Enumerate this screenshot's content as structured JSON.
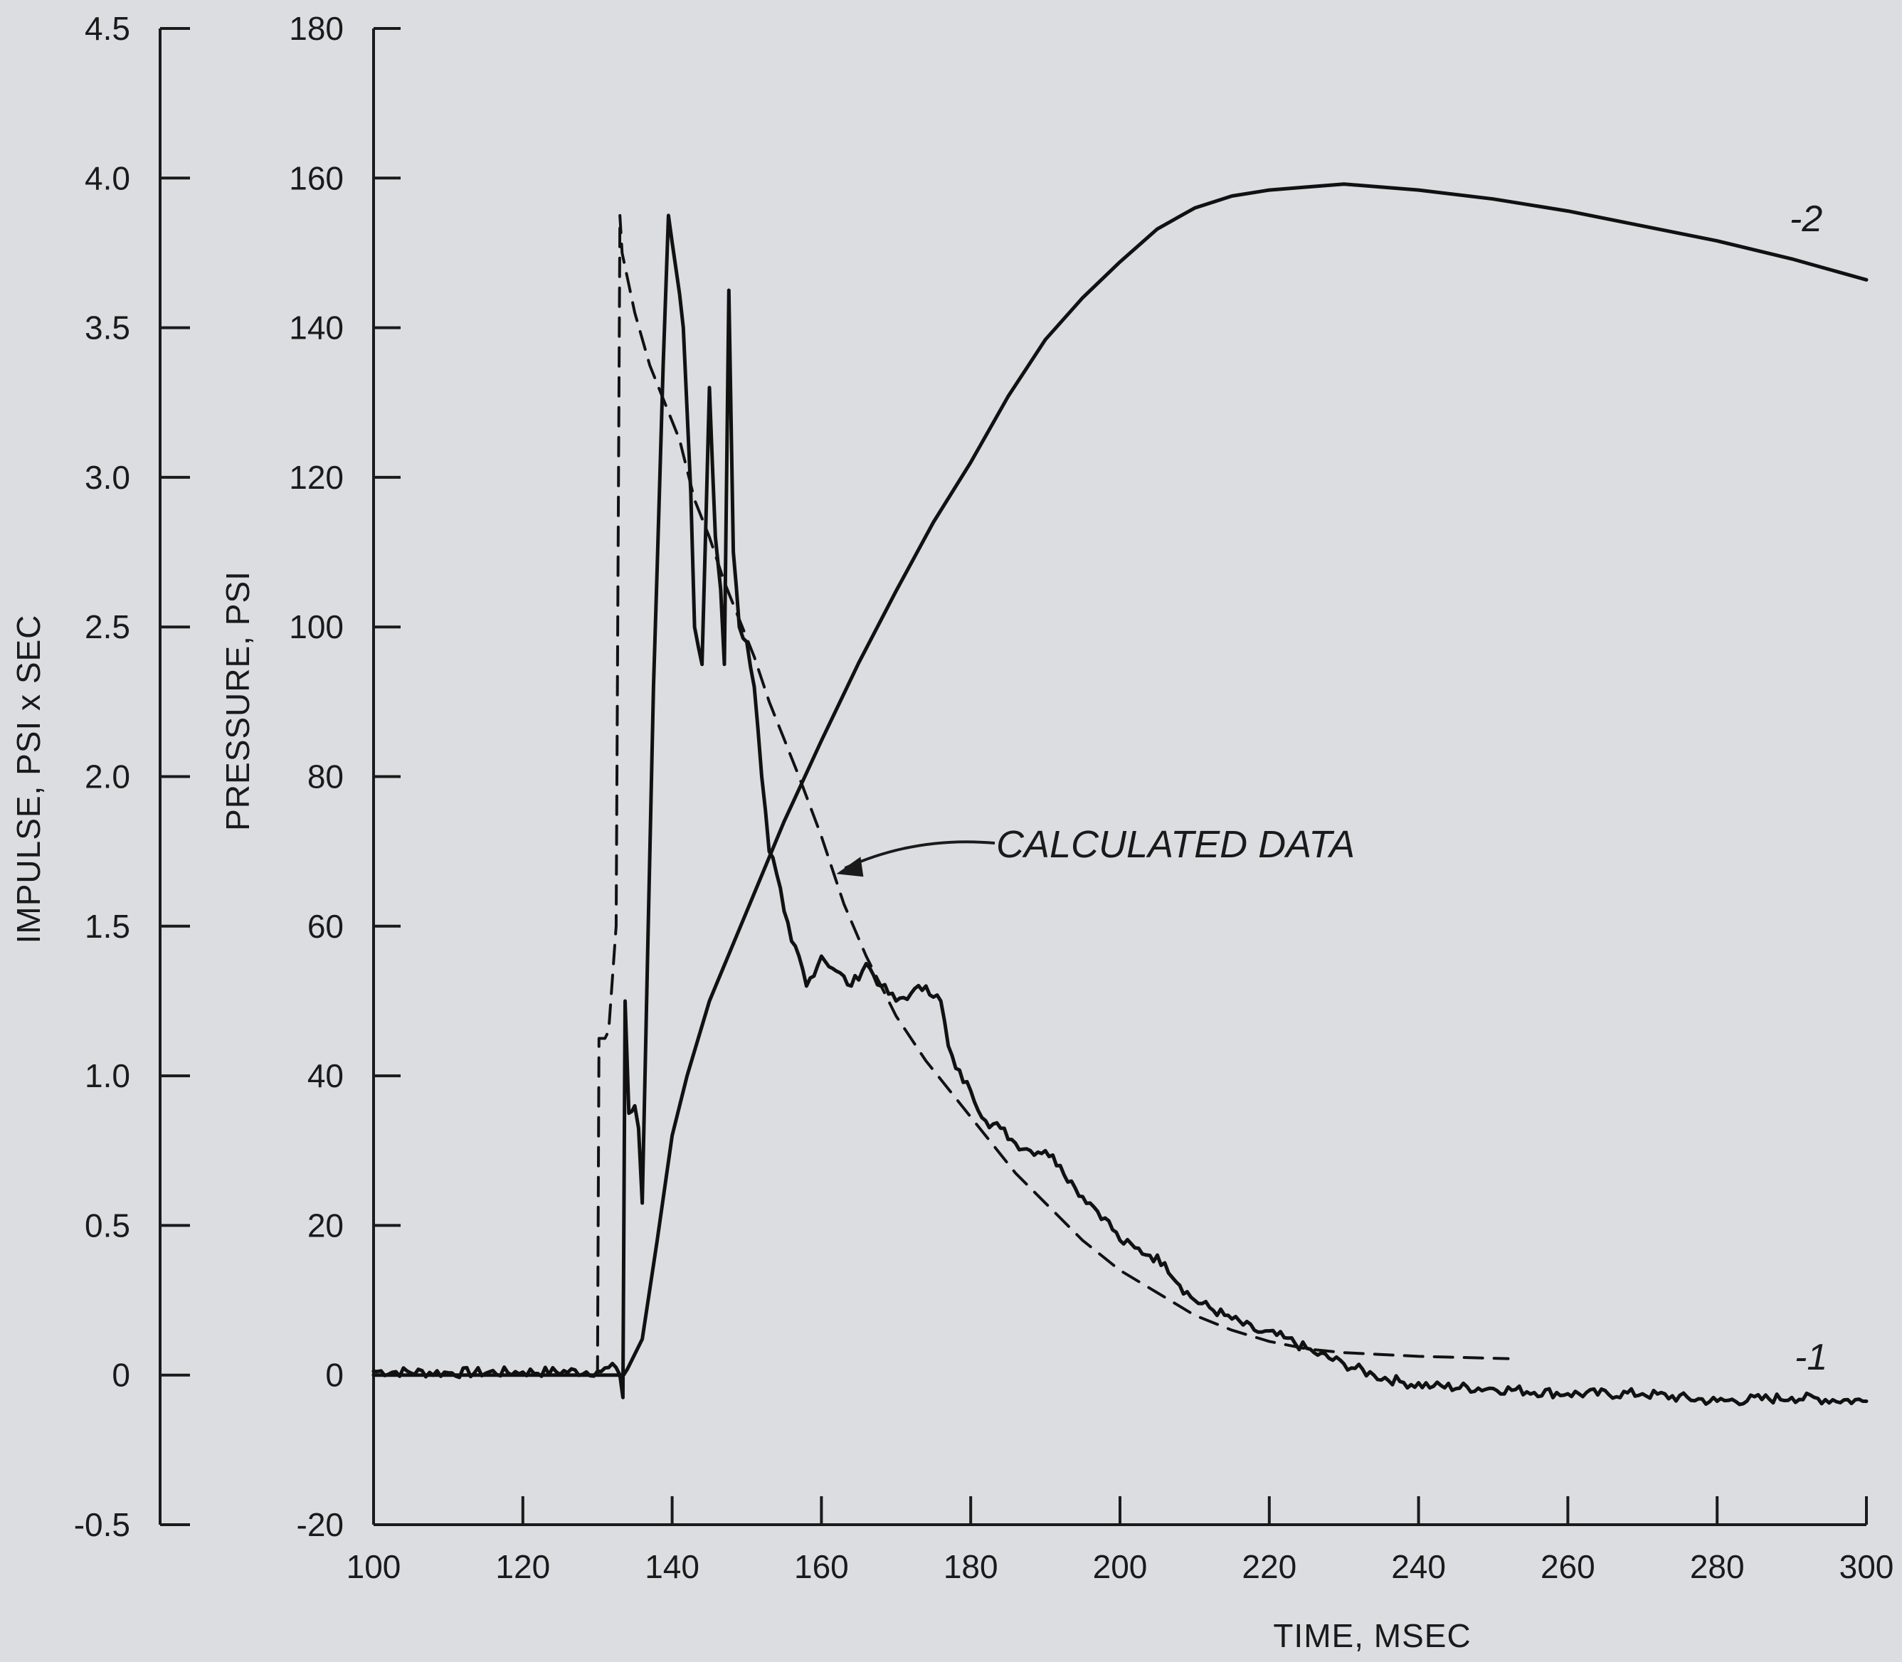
{
  "chart_data": {
    "type": "line",
    "title": "",
    "xlabel": "TIME, MSEC",
    "y_left_outer_label": "IMPULSE, PSI x SEC",
    "y_left_inner_label": "PRESSURE, PSI",
    "xlim": [
      100,
      300
    ],
    "xticks": [
      100,
      120,
      140,
      160,
      180,
      200,
      220,
      240,
      260,
      280,
      300
    ],
    "pressure_axis": {
      "ylim": [
        -20,
        180
      ],
      "ticks": [
        -20,
        0,
        20,
        40,
        60,
        80,
        100,
        120,
        140,
        160,
        180
      ]
    },
    "impulse_axis": {
      "ylim": [
        -0.5,
        4.5
      ],
      "ticks": [
        "-0.5",
        "0",
        "0.5",
        "1.0",
        "1.5",
        "2.0",
        "2.5",
        "3.0",
        "3.5",
        "4.0",
        "4.5"
      ]
    },
    "grid": false,
    "series": [
      {
        "name": "-1",
        "axis": "pressure",
        "style": "solid-noisy",
        "points": [
          [
            100,
            0.5
          ],
          [
            110,
            0.3
          ],
          [
            120,
            0.4
          ],
          [
            130,
            0.5
          ],
          [
            132.5,
            1
          ],
          [
            133,
            0
          ],
          [
            133.4,
            -3
          ],
          [
            133.7,
            50
          ],
          [
            134.2,
            35
          ],
          [
            135,
            36
          ],
          [
            135.5,
            33
          ],
          [
            136,
            23
          ],
          [
            136.8,
            60
          ],
          [
            137.5,
            92
          ],
          [
            138,
            108
          ],
          [
            138.8,
            135
          ],
          [
            139.5,
            155
          ],
          [
            140.5,
            148
          ],
          [
            141.5,
            140
          ],
          [
            142.5,
            118
          ],
          [
            143,
            100
          ],
          [
            144,
            95
          ],
          [
            145,
            132
          ],
          [
            145.8,
            112
          ],
          [
            146.5,
            105
          ],
          [
            147,
            95
          ],
          [
            147.6,
            145
          ],
          [
            148.2,
            110
          ],
          [
            149,
            100
          ],
          [
            150,
            98
          ],
          [
            151,
            92
          ],
          [
            152,
            80
          ],
          [
            153,
            70
          ],
          [
            154,
            67
          ],
          [
            155,
            62
          ],
          [
            156,
            58
          ],
          [
            157,
            56
          ],
          [
            158,
            52
          ],
          [
            160,
            56
          ],
          [
            162,
            54
          ],
          [
            164,
            52
          ],
          [
            166,
            55
          ],
          [
            168,
            52
          ],
          [
            170,
            50
          ],
          [
            172,
            51
          ],
          [
            174,
            52
          ],
          [
            176,
            50
          ],
          [
            177,
            44
          ],
          [
            178,
            41
          ],
          [
            180,
            38
          ],
          [
            182,
            34
          ],
          [
            184,
            33
          ],
          [
            186,
            31
          ],
          [
            188,
            30
          ],
          [
            190,
            30
          ],
          [
            192,
            28
          ],
          [
            194,
            25
          ],
          [
            196,
            23
          ],
          [
            198,
            21
          ],
          [
            200,
            18
          ],
          [
            202,
            17
          ],
          [
            204,
            16
          ],
          [
            206,
            15
          ],
          [
            208,
            12
          ],
          [
            210,
            10
          ],
          [
            214,
            8
          ],
          [
            218,
            6
          ],
          [
            222,
            5
          ],
          [
            226,
            3
          ],
          [
            230,
            1.5
          ],
          [
            234,
            0
          ],
          [
            238,
            -1
          ],
          [
            242,
            -1.5
          ],
          [
            250,
            -1.8
          ],
          [
            260,
            -2.5
          ],
          [
            270,
            -2.5
          ],
          [
            280,
            -3.5
          ],
          [
            290,
            -3
          ],
          [
            300,
            -3.5
          ]
        ]
      },
      {
        "name": "-2",
        "axis": "impulse",
        "style": "solid",
        "points": [
          [
            100,
            0
          ],
          [
            130,
            0
          ],
          [
            133.5,
            0
          ],
          [
            134,
            0.02
          ],
          [
            136,
            0.12
          ],
          [
            138,
            0.45
          ],
          [
            140,
            0.8
          ],
          [
            142,
            1.0
          ],
          [
            145,
            1.25
          ],
          [
            150,
            1.55
          ],
          [
            155,
            1.85
          ],
          [
            160,
            2.12
          ],
          [
            165,
            2.38
          ],
          [
            170,
            2.62
          ],
          [
            175,
            2.85
          ],
          [
            180,
            3.05
          ],
          [
            185,
            3.27
          ],
          [
            190,
            3.46
          ],
          [
            195,
            3.6
          ],
          [
            200,
            3.72
          ],
          [
            205,
            3.83
          ],
          [
            210,
            3.9
          ],
          [
            215,
            3.94
          ],
          [
            220,
            3.96
          ],
          [
            225,
            3.97
          ],
          [
            230,
            3.98
          ],
          [
            240,
            3.96
          ],
          [
            250,
            3.93
          ],
          [
            260,
            3.89
          ],
          [
            270,
            3.84
          ],
          [
            280,
            3.79
          ],
          [
            290,
            3.73
          ],
          [
            300,
            3.66
          ]
        ]
      },
      {
        "name": "CALCULATED DATA",
        "axis": "pressure",
        "style": "dashed",
        "points": [
          [
            130,
            0
          ],
          [
            130.2,
            45
          ],
          [
            131,
            45
          ],
          [
            131.5,
            46
          ],
          [
            132.5,
            60
          ],
          [
            133,
            155
          ],
          [
            133.3,
            150
          ],
          [
            135,
            142
          ],
          [
            137,
            135
          ],
          [
            139,
            130
          ],
          [
            141,
            125
          ],
          [
            143,
            117
          ],
          [
            145,
            112
          ],
          [
            147,
            106
          ],
          [
            149,
            101
          ],
          [
            151,
            96
          ],
          [
            153,
            90
          ],
          [
            155,
            85
          ],
          [
            157,
            80
          ],
          [
            160,
            72
          ],
          [
            163,
            63
          ],
          [
            166,
            56
          ],
          [
            170,
            48
          ],
          [
            174,
            42
          ],
          [
            178,
            37
          ],
          [
            182,
            32
          ],
          [
            186,
            27
          ],
          [
            190,
            23
          ],
          [
            195,
            18
          ],
          [
            200,
            14
          ],
          [
            205,
            11
          ],
          [
            210,
            8
          ],
          [
            215,
            6
          ],
          [
            220,
            4.5
          ],
          [
            225,
            3.5
          ],
          [
            230,
            3
          ],
          [
            240,
            2.5
          ],
          [
            252,
            2.2
          ]
        ]
      }
    ],
    "labels": {
      "series1": "-1",
      "series2": "-2"
    },
    "annotation": {
      "text": "CALCULATED DATA",
      "at": [
        162,
        67
      ]
    }
  }
}
